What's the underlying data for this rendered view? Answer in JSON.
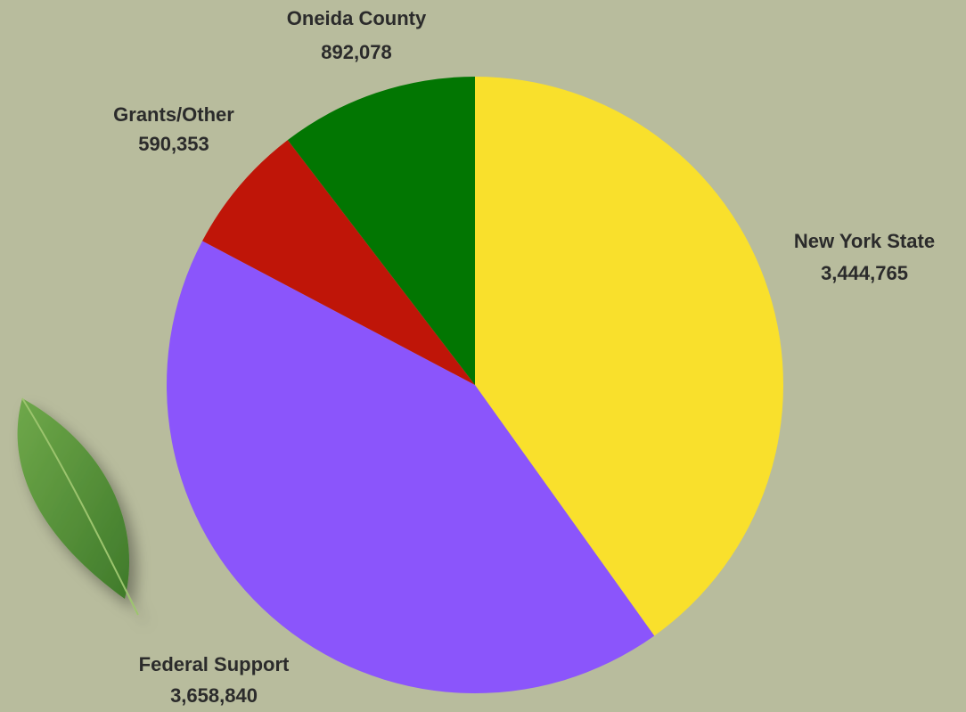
{
  "chart_data": {
    "type": "pie",
    "categories": [
      "New York State",
      "Federal Support",
      "Grants/Other",
      "Oneida County"
    ],
    "values": [
      3444765,
      3658840,
      590353,
      892078
    ],
    "value_labels": [
      "3,444,765",
      "3,658,840",
      "590,353",
      "892,078"
    ],
    "colors": [
      "#f9e02c",
      "#8b55fb",
      "#bf1508",
      "#027602"
    ]
  }
}
